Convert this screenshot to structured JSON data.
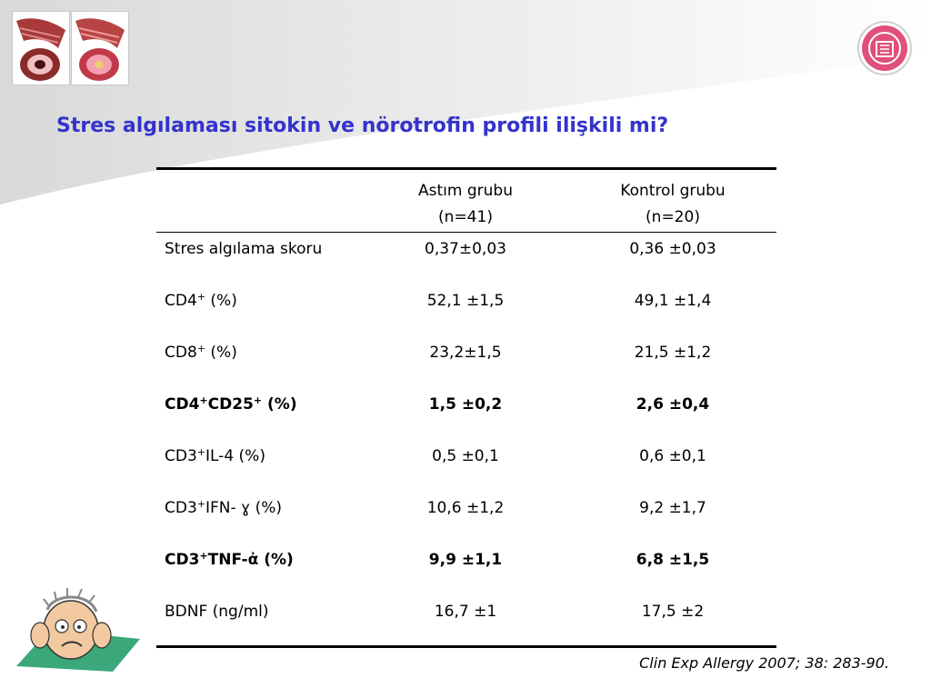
{
  "title": "Stres algılaması sitokin ve nörotrofin profili ilişkili mi?",
  "table": {
    "columns": [
      {
        "line1": "Astım grubu",
        "line2": "(n=41)"
      },
      {
        "line1": "Kontrol grubu",
        "line2": "(n=20)"
      }
    ],
    "rows": [
      {
        "label_main": "Stres algılama skoru",
        "sup1": "",
        "label_mid": "",
        "sup2": "",
        "label_tail": "",
        "asthma": "0,37±0,03",
        "control": "0,36 ±0,03",
        "bold": false
      },
      {
        "label_main": "CD4",
        "sup1": "+",
        "label_mid": "",
        "sup2": "",
        "label_tail": " (%)",
        "asthma": "52,1 ±1,5",
        "control": "49,1 ±1,4",
        "bold": false
      },
      {
        "label_main": "CD8",
        "sup1": "+",
        "label_mid": "",
        "sup2": "",
        "label_tail": " (%)",
        "asthma": "23,2±1,5",
        "control": "21,5 ±1,2",
        "bold": false
      },
      {
        "label_main": "CD4",
        "sup1": "+",
        "label_mid": "CD25",
        "sup2": "+",
        "label_tail": " (%)",
        "asthma": "1,5 ±0,2",
        "control": "2,6 ±0,4",
        "bold": true
      },
      {
        "label_main": "CD3",
        "sup1": "+",
        "label_mid": "IL-4 (%)",
        "sup2": "",
        "label_tail": "",
        "asthma": "0,5 ±0,1",
        "control": "0,6 ±0,1",
        "bold": false
      },
      {
        "label_main": "CD3",
        "sup1": "+",
        "label_mid": "IFN- ɣ (%)",
        "sup2": "",
        "label_tail": "",
        "asthma": "10,6 ±1,2",
        "control": "9,2 ±1,7",
        "bold": false
      },
      {
        "label_main": "CD3",
        "sup1": "+",
        "label_mid": "TNF-ἀ (%)",
        "sup2": "",
        "label_tail": "",
        "asthma": "9,9 ±1,1",
        "control": "6,8 ±1,5",
        "bold": true
      },
      {
        "label_main": "BDNF (ng/ml)",
        "sup1": "",
        "label_mid": "",
        "sup2": "",
        "label_tail": "",
        "asthma": "16,7 ±1",
        "control": "17,5 ±2",
        "bold": false
      }
    ]
  },
  "citation": "Clin Exp Allergy 2007; 38: 283-90.",
  "colors": {
    "title": "#3333cc",
    "logo": "#e0507a",
    "airway": "#a83a3a"
  },
  "icons": {
    "airway_left": "airway-cross-section-icon",
    "airway_right": "inflamed-airway-icon",
    "logo": "society-logo-icon",
    "cartoon": "stressed-person-cartoon-icon"
  }
}
